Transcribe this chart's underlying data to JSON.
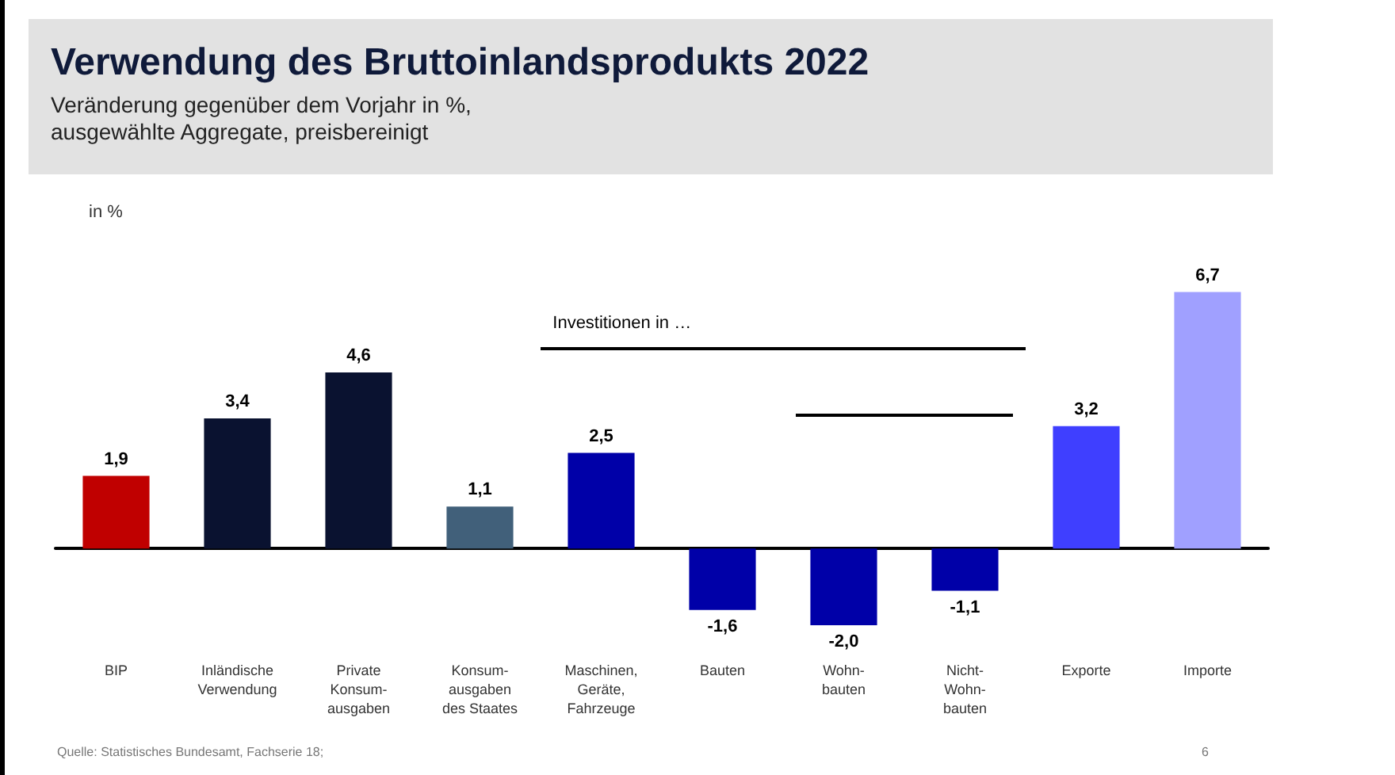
{
  "chart_data": {
    "type": "bar",
    "title": "Verwendung des Bruttoinlandsprodukts 2022",
    "subtitle": "Veränderung gegenüber dem Vorjahr in %,\nausgewählte Aggregate, preisbereinigt",
    "ylabel": "in %",
    "categories": [
      "BIP",
      "Inländische\nVerwendung",
      "Private\nKonsum-\nausgaben",
      "Konsum-\nausgaben\ndes Staates",
      "Maschinen,\nGeräte,\nFahrzeuge",
      "Bauten",
      "Wohn-\nbauten",
      "Nicht-\nWohn-\nbauten",
      "Exporte",
      "Importe"
    ],
    "values": [
      1.9,
      3.4,
      4.6,
      1.1,
      2.5,
      -1.6,
      -2.0,
      -1.1,
      3.2,
      6.7
    ],
    "colors": [
      "#c00000",
      "#0a1230",
      "#0a1230",
      "#41607a",
      "#0000a8",
      "#0000a8",
      "#0000a8",
      "#0000a8",
      "#3f3fff",
      "#a0a0ff"
    ],
    "value_labels": [
      "1,9",
      "3,4",
      "4,6",
      "1,1",
      "2,5",
      "-1,6",
      "-2,0",
      "-1,1",
      "3,2",
      "6,7"
    ],
    "annotations": [
      "Investitionen in …",
      "Quelle: Statistisches Bundesamt, Fachserie 18;",
      "6"
    ]
  }
}
